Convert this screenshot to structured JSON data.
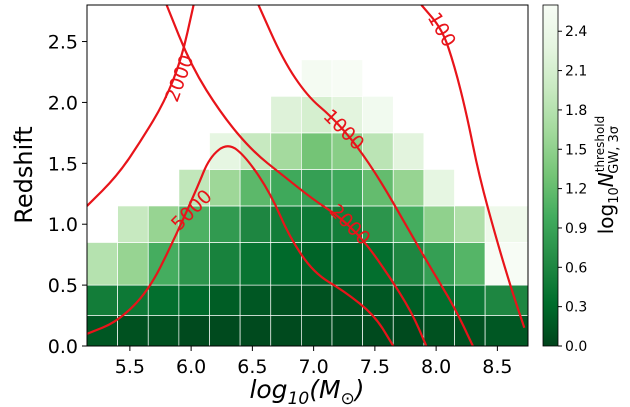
{
  "chart_data": {
    "type": "heatmap",
    "title": "",
    "xlabel": "log10M(M⊙)",
    "xlabel_parts": {
      "base": "log",
      "sub": "10",
      "var": "M",
      "paren_open": "(M",
      "sub2": "⊙",
      "paren_close": ")"
    },
    "ylabel": "Redshift",
    "xlim": [
      5.15,
      8.75
    ],
    "ylim": [
      0.0,
      2.8
    ],
    "x_ticks": [
      "5.5",
      "6.0",
      "6.5",
      "7.0",
      "7.5",
      "8.0",
      "8.5"
    ],
    "y_ticks": [
      "0.0",
      "0.5",
      "1.0",
      "1.5",
      "2.0",
      "2.5"
    ],
    "grid": false,
    "colorbar": {
      "label": "log10 N threshold GW,3σ",
      "label_parts": {
        "base": "log",
        "sub": "10",
        "var": "N",
        "sup": "threshold",
        "sub2": "GW, 3σ"
      },
      "range": [
        0.0,
        2.6
      ],
      "ticks": [
        "0.0",
        "0.3",
        "0.6",
        "0.9",
        "1.2",
        "1.5",
        "1.8",
        "2.1",
        "2.4"
      ],
      "colormap": "Greens_r",
      "colors": [
        "#00441b",
        "#006d2c",
        "#238b45",
        "#41ab5d",
        "#74c476",
        "#a1d99b",
        "#c7e9c0",
        "#e5f5e0",
        "#f7fcf5"
      ]
    },
    "cells": {
      "x_edges": [
        5.15,
        5.4,
        5.65,
        5.9,
        6.15,
        6.4,
        6.65,
        6.9,
        7.15,
        7.4,
        7.65,
        7.9,
        8.15,
        8.4,
        8.75
      ],
      "y_edges": [
        0.0,
        0.25,
        0.5,
        0.85,
        1.15,
        1.45,
        1.75,
        2.05,
        2.35
      ],
      "values": [
        [
          0.15,
          0.1,
          0.1,
          0.05,
          0.05,
          0.05,
          0.05,
          0.05,
          0.05,
          0.05,
          0.05,
          0.1,
          0.1,
          0.15
        ],
        [
          0.5,
          0.45,
          0.35,
          0.3,
          0.2,
          0.15,
          0.1,
          0.1,
          0.1,
          0.15,
          0.2,
          0.35,
          0.45,
          0.6
        ],
        [
          1.8,
          1.55,
          1.0,
          0.75,
          0.55,
          0.4,
          0.3,
          0.25,
          0.25,
          0.35,
          0.6,
          0.85,
          1.1,
          2.6
        ],
        [
          null,
          1.95,
          1.55,
          1.05,
          0.8,
          0.6,
          0.5,
          0.45,
          0.5,
          0.75,
          1.0,
          1.5,
          1.75,
          2.45
        ],
        [
          null,
          null,
          null,
          1.9,
          1.6,
          1.15,
          0.95,
          0.85,
          0.95,
          1.2,
          1.55,
          2.3,
          null,
          null
        ],
        [
          null,
          null,
          null,
          null,
          2.3,
          1.95,
          1.65,
          1.3,
          1.45,
          1.85,
          2.25,
          null,
          null,
          null
        ],
        [
          null,
          null,
          null,
          null,
          null,
          null,
          2.2,
          2.1,
          2.25,
          2.5,
          null,
          null,
          null,
          null
        ],
        [
          null,
          null,
          null,
          null,
          null,
          null,
          null,
          2.55,
          2.6,
          null,
          null,
          null,
          null,
          null
        ]
      ]
    },
    "contours": [
      {
        "label": "100",
        "label_x": 8.05,
        "label_y": 2.6,
        "label_angle": 60,
        "points": [
          [
            7.88,
            2.8
          ],
          [
            8.05,
            2.6
          ],
          [
            8.15,
            2.3
          ],
          [
            8.25,
            1.9
          ],
          [
            8.35,
            1.4
          ],
          [
            8.5,
            0.85
          ],
          [
            8.62,
            0.45
          ],
          [
            8.72,
            0.15
          ]
        ]
      },
      {
        "label": "1000",
        "label_x": 7.25,
        "label_y": 1.78,
        "label_angle": 45,
        "points": [
          [
            6.55,
            2.8
          ],
          [
            6.75,
            2.35
          ],
          [
            6.95,
            2.05
          ],
          [
            7.15,
            1.88
          ],
          [
            7.35,
            1.65
          ],
          [
            7.55,
            1.35
          ],
          [
            7.75,
            1.0
          ],
          [
            7.95,
            0.65
          ],
          [
            8.15,
            0.32
          ],
          [
            8.3,
            0.0
          ]
        ]
      },
      {
        "label": "2000",
        "label_x": 5.9,
        "label_y": 2.2,
        "label_angle": -70,
        "points": [
          [
            5.15,
            1.15
          ],
          [
            5.4,
            1.4
          ],
          [
            5.6,
            1.7
          ],
          [
            5.78,
            2.0
          ],
          [
            5.92,
            2.35
          ],
          [
            6.02,
            2.8
          ]
        ]
      },
      {
        "label": "2000",
        "label_x": 7.3,
        "label_y": 1.0,
        "label_angle": 45,
        "points": [
          [
            5.8,
            2.8
          ],
          [
            6.0,
            2.3
          ],
          [
            6.25,
            1.9
          ],
          [
            6.5,
            1.6
          ],
          [
            6.75,
            1.4
          ],
          [
            7.0,
            1.2
          ],
          [
            7.2,
            1.07
          ],
          [
            7.4,
            0.88
          ],
          [
            7.6,
            0.6
          ],
          [
            7.8,
            0.28
          ],
          [
            7.92,
            0.0
          ]
        ]
      },
      {
        "label": "5000",
        "label_x": 6.0,
        "label_y": 1.12,
        "label_angle": -45,
        "points": [
          [
            5.15,
            0.1
          ],
          [
            5.4,
            0.2
          ],
          [
            5.65,
            0.45
          ],
          [
            5.85,
            0.85
          ],
          [
            6.05,
            1.3
          ],
          [
            6.15,
            1.55
          ],
          [
            6.3,
            1.67
          ],
          [
            6.45,
            1.55
          ],
          [
            6.65,
            1.25
          ],
          [
            6.8,
            0.9
          ],
          [
            7.0,
            0.6
          ],
          [
            7.25,
            0.45
          ],
          [
            7.5,
            0.25
          ],
          [
            7.65,
            0.0
          ]
        ]
      },
      {
        "label": "",
        "points": [
          [
            5.15,
            2.85
          ],
          [
            5.18,
            2.8
          ]
        ]
      }
    ]
  }
}
